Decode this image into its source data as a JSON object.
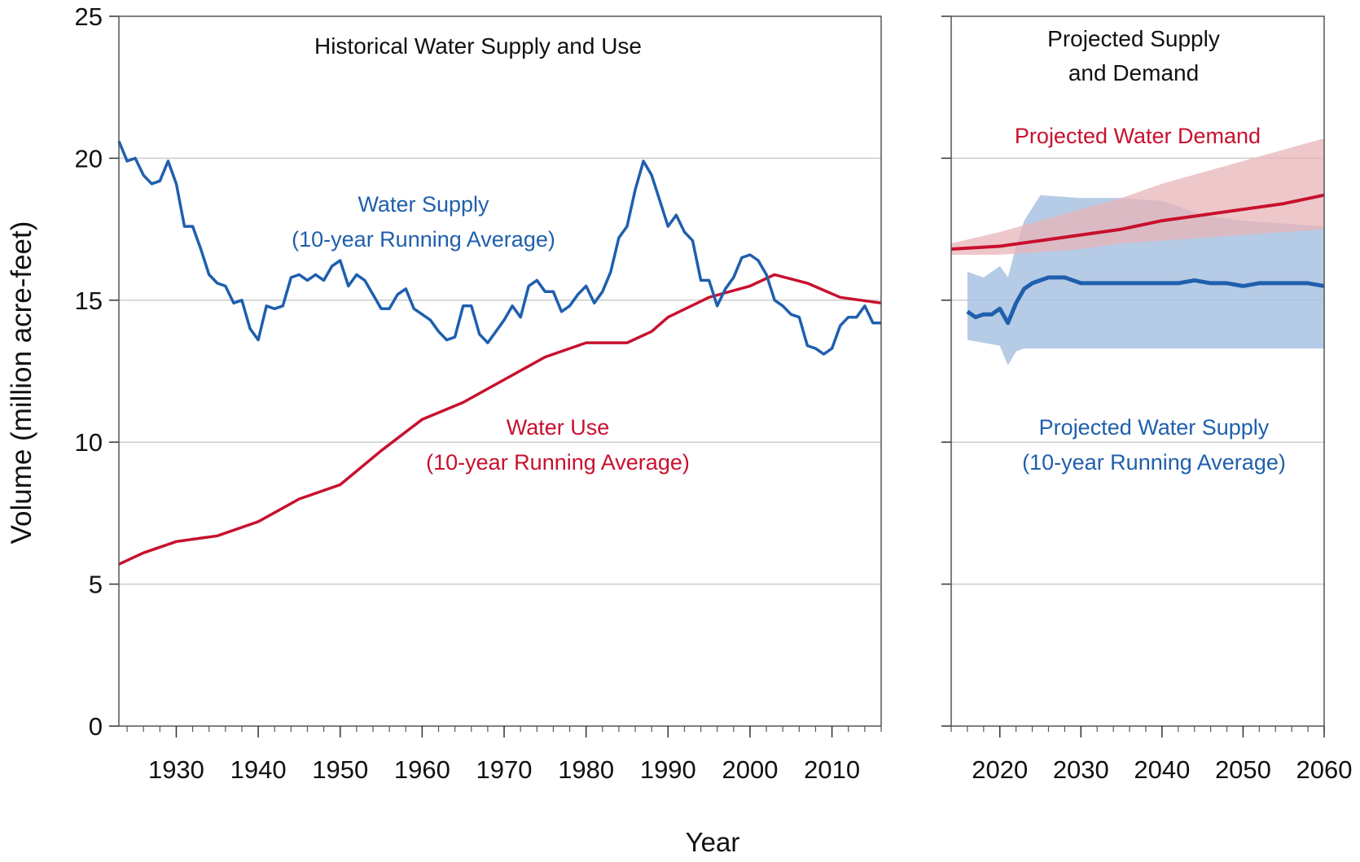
{
  "chart_data": {
    "type": "line",
    "ylabel": "Volume (million acre-feet)",
    "xlabel": "Year",
    "ylim": [
      0,
      25
    ],
    "yticks": [
      0,
      5,
      10,
      15,
      20,
      25
    ],
    "grid": true,
    "colors": {
      "supply": "#1f5fad",
      "supply_band": "#a9c2e2",
      "demand": "#c8102e",
      "demand_band": "#e8b4b8",
      "grid": "#cccccc"
    },
    "panels": [
      {
        "title": "Historical Water Supply and Use",
        "xlim": [
          1923,
          2016
        ],
        "xticks": [
          1930,
          1940,
          1950,
          1960,
          1970,
          1980,
          1990,
          2000,
          2010
        ],
        "series": [
          {
            "name": "Water Supply",
            "label_line1": "Water Supply",
            "label_line2": "(10-year Running Average)",
            "color": "#1f5fad",
            "x": [
              1923,
              1924,
              1925,
              1926,
              1927,
              1928,
              1929,
              1930,
              1931,
              1932,
              1933,
              1934,
              1935,
              1936,
              1937,
              1938,
              1939,
              1940,
              1941,
              1942,
              1943,
              1944,
              1945,
              1946,
              1947,
              1948,
              1949,
              1950,
              1951,
              1952,
              1953,
              1954,
              1955,
              1956,
              1957,
              1958,
              1959,
              1960,
              1961,
              1962,
              1963,
              1964,
              1965,
              1966,
              1967,
              1968,
              1969,
              1970,
              1971,
              1972,
              1973,
              1974,
              1975,
              1976,
              1977,
              1978,
              1979,
              1980,
              1981,
              1982,
              1983,
              1984,
              1985,
              1986,
              1987,
              1988,
              1989,
              1990,
              1991,
              1992,
              1993,
              1994,
              1995,
              1996,
              1997,
              1998,
              1999,
              2000,
              2001,
              2002,
              2003,
              2004,
              2005,
              2006,
              2007,
              2008,
              2009,
              2010,
              2011,
              2012,
              2013,
              2014,
              2015,
              2016
            ],
            "y": [
              20.6,
              19.9,
              20.0,
              19.4,
              19.1,
              19.2,
              19.9,
              19.1,
              17.6,
              17.6,
              16.8,
              15.9,
              15.6,
              15.5,
              14.9,
              15.0,
              14.0,
              13.6,
              14.8,
              14.7,
              14.8,
              15.8,
              15.9,
              15.7,
              15.9,
              15.7,
              16.2,
              16.4,
              15.5,
              15.9,
              15.7,
              15.2,
              14.7,
              14.7,
              15.2,
              15.4,
              14.7,
              14.5,
              14.3,
              13.9,
              13.6,
              13.7,
              14.8,
              14.8,
              13.8,
              13.5,
              13.9,
              14.3,
              14.8,
              14.4,
              15.5,
              15.7,
              15.3,
              15.3,
              14.6,
              14.8,
              15.2,
              15.5,
              14.9,
              15.3,
              16.0,
              17.2,
              17.6,
              18.9,
              19.9,
              19.4,
              18.5,
              17.6,
              18.0,
              17.4,
              17.1,
              15.7,
              15.7,
              14.8,
              15.4,
              15.8,
              16.5,
              16.6,
              16.4,
              15.9,
              15.0,
              14.8,
              14.5,
              14.4,
              13.4,
              13.3,
              13.1,
              13.3,
              14.1,
              14.4,
              14.4,
              14.8,
              14.2,
              14.2
            ]
          },
          {
            "name": "Water Use",
            "label_line1": "Water Use",
            "label_line2": "(10-year Running Average)",
            "color": "#c8102e",
            "x": [
              1923,
              1926,
              1930,
              1935,
              1940,
              1945,
              1950,
              1955,
              1960,
              1965,
              1970,
              1975,
              1980,
              1985,
              1988,
              1990,
              1995,
              2000,
              2003,
              2007,
              2011,
              2016
            ],
            "y": [
              5.7,
              6.1,
              6.5,
              6.7,
              7.2,
              8.0,
              8.5,
              9.7,
              10.8,
              11.4,
              12.2,
              13.0,
              13.5,
              13.5,
              13.9,
              14.4,
              15.1,
              15.5,
              15.9,
              15.6,
              15.1,
              14.9
            ]
          }
        ]
      },
      {
        "title_line1": "Projected Supply",
        "title_line2": "and Demand",
        "xlim": [
          2014,
          2060
        ],
        "xticks": [
          2020,
          2030,
          2040,
          2050,
          2060
        ],
        "series": [
          {
            "name": "Projected Water Demand",
            "label": "Projected Water Demand",
            "color": "#c8102e",
            "x": [
              2014,
              2020,
              2025,
              2030,
              2035,
              2040,
              2045,
              2050,
              2055,
              2060
            ],
            "y": [
              16.8,
              16.9,
              17.1,
              17.3,
              17.5,
              17.8,
              18.0,
              18.2,
              18.4,
              18.7
            ],
            "band_upper": [
              17.0,
              17.4,
              17.8,
              18.2,
              18.6,
              19.1,
              19.5,
              19.9,
              20.3,
              20.7
            ],
            "band_lower": [
              16.6,
              16.6,
              16.7,
              16.8,
              17.0,
              17.1,
              17.2,
              17.3,
              17.4,
              17.5
            ]
          },
          {
            "name": "Projected Water Supply",
            "label_line1": "Projected Water Supply",
            "label_line2": "(10-year Running Average)",
            "color": "#1f5fad",
            "x": [
              2016,
              2017,
              2018,
              2019,
              2020,
              2021,
              2022,
              2023,
              2024,
              2025,
              2026,
              2027,
              2028,
              2030,
              2032,
              2034,
              2036,
              2038,
              2040,
              2042,
              2044,
              2046,
              2048,
              2050,
              2052,
              2054,
              2056,
              2058,
              2060
            ],
            "y": [
              14.6,
              14.4,
              14.5,
              14.5,
              14.7,
              14.2,
              14.9,
              15.4,
              15.6,
              15.7,
              15.8,
              15.8,
              15.8,
              15.6,
              15.6,
              15.6,
              15.6,
              15.6,
              15.6,
              15.6,
              15.7,
              15.6,
              15.6,
              15.5,
              15.6,
              15.6,
              15.6,
              15.6,
              15.5
            ],
            "band_x": [
              2016,
              2018,
              2020,
              2021,
              2022,
              2023,
              2025,
              2030,
              2035,
              2040,
              2045,
              2050,
              2055,
              2060
            ],
            "band_upper": [
              16.0,
              15.8,
              16.2,
              15.8,
              16.9,
              17.8,
              18.7,
              18.6,
              18.6,
              18.5,
              18.0,
              17.8,
              17.7,
              17.6
            ],
            "band_lower": [
              13.6,
              13.5,
              13.4,
              12.7,
              13.2,
              13.3,
              13.3,
              13.3,
              13.3,
              13.3,
              13.3,
              13.3,
              13.3,
              13.3
            ]
          }
        ]
      }
    ]
  }
}
